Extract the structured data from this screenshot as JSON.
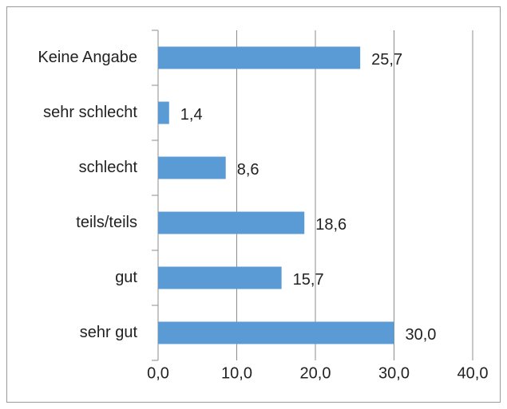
{
  "chart_data": {
    "type": "bar",
    "orientation": "horizontal",
    "categories": [
      "Keine Angabe",
      "sehr schlecht",
      "schlecht",
      "teils/teils",
      "gut",
      "sehr gut"
    ],
    "values": [
      25.7,
      1.4,
      8.6,
      18.6,
      15.7,
      30.0
    ],
    "value_labels": [
      "25,7",
      "1,4",
      "8,6",
      "18,6",
      "15,7",
      "30,0"
    ],
    "color": "#5b9bd5",
    "xlim": [
      0,
      40
    ],
    "xticks": [
      {
        "value": 0,
        "label": "0,0"
      },
      {
        "value": 10,
        "label": "10,0"
      },
      {
        "value": 20,
        "label": "20,0"
      },
      {
        "value": 30,
        "label": "30,0"
      },
      {
        "value": 40,
        "label": "40,0"
      }
    ],
    "grid": true
  }
}
